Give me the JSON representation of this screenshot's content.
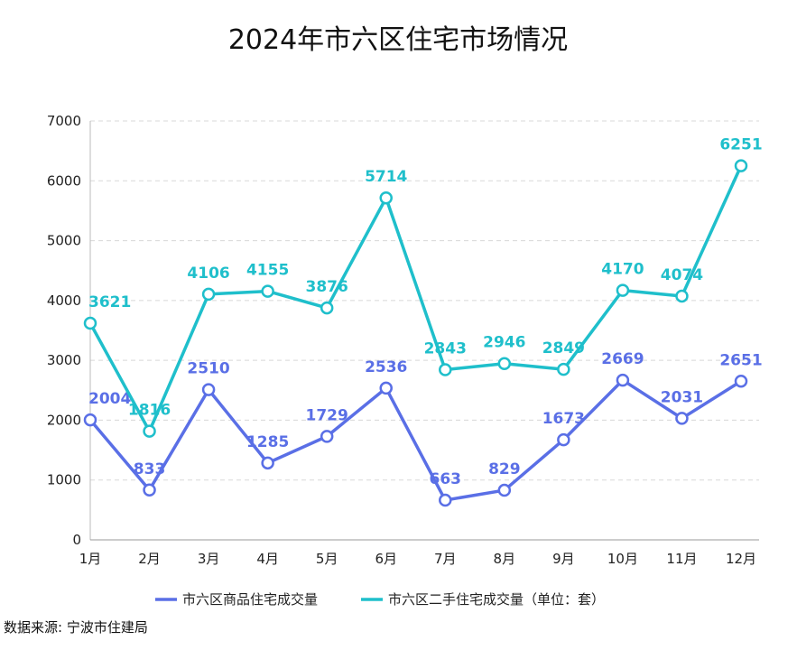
{
  "chart_data": {
    "type": "line",
    "title": "2024年市六区住宅市场情况",
    "categories": [
      "1月",
      "2月",
      "3月",
      "4月",
      "5月",
      "6月",
      "7月",
      "8月",
      "9月",
      "10月",
      "11月",
      "12月"
    ],
    "ylim": [
      0,
      7000
    ],
    "yticks": [
      0,
      1000,
      2000,
      3000,
      4000,
      5000,
      6000,
      7000
    ],
    "grid": true,
    "legend_position": "bottom",
    "series": [
      {
        "name": "市六区商品住宅成交量",
        "color": "#5a6fe6",
        "values": [
          2004,
          833,
          2510,
          1285,
          1729,
          2536,
          663,
          829,
          1673,
          2669,
          2031,
          2651
        ]
      },
      {
        "name": "市六区二手住宅成交量（单位：套）",
        "color": "#1fbfcb",
        "values": [
          3621,
          1816,
          4106,
          4155,
          3876,
          5714,
          2843,
          2946,
          2849,
          4170,
          4074,
          6251
        ]
      }
    ]
  },
  "source": "数据来源: 宁波市住建局"
}
